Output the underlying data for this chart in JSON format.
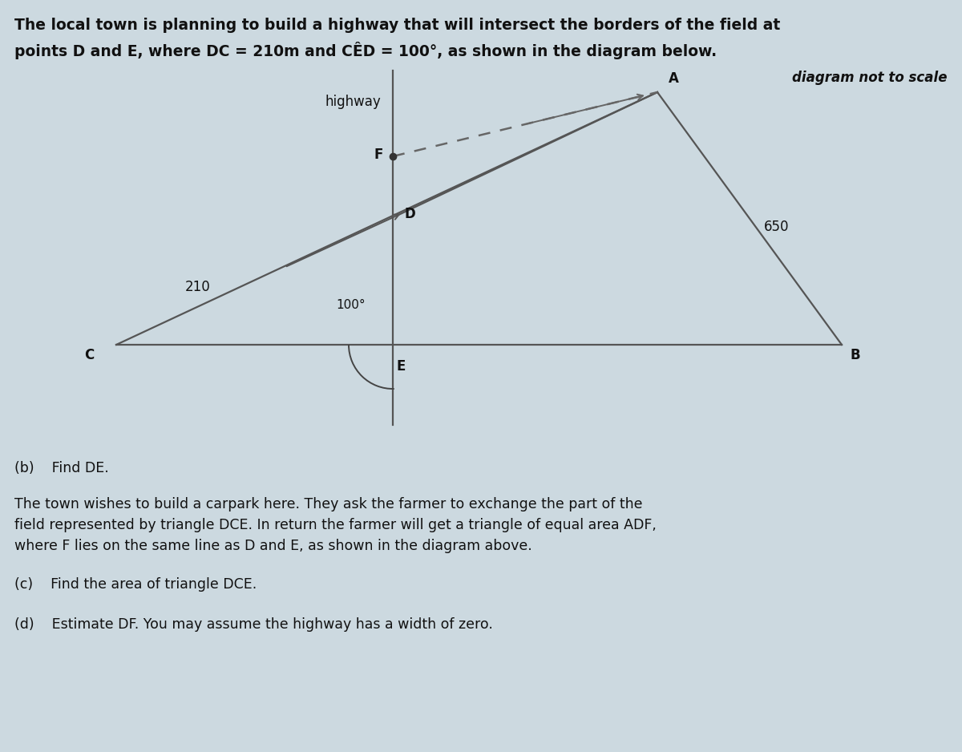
{
  "bg_color": "#ccd9e0",
  "title_line1": "The local town is planning to build a highway that will intersect the borders of the field at",
  "title_line2": "points D and E, where DC = 210m and CÊD = 100°, as shown in the diagram below.",
  "diagram_not_to_scale": "diagram not to scale",
  "highway_label": "highway",
  "label_210": "210",
  "label_100": "100°",
  "label_650": "650",
  "line_color": "#555555",
  "dashed_color": "#666666",
  "text_color": "#111111",
  "arc_color": "#444444",
  "part_b_label": "(b)    Find DE.",
  "part_c_label": "(c)    Find the area of triangle DCE.",
  "part_d_label": "(d)    Estimate DF. You may assume the highway has a width of zero.",
  "body_text1": "The town wishes to build a carpark here. They ask the farmer to exchange the part of the",
  "body_text2": "field represented by triangle DCE. In return the farmer will get a triangle of equal area ADF,",
  "body_text3": "where F lies on the same line as D and E, as shown in the diagram above.",
  "font_size_title": 13.5,
  "font_size_body": 12.5,
  "font_size_label": 12,
  "font_size_diagram_note": 12
}
